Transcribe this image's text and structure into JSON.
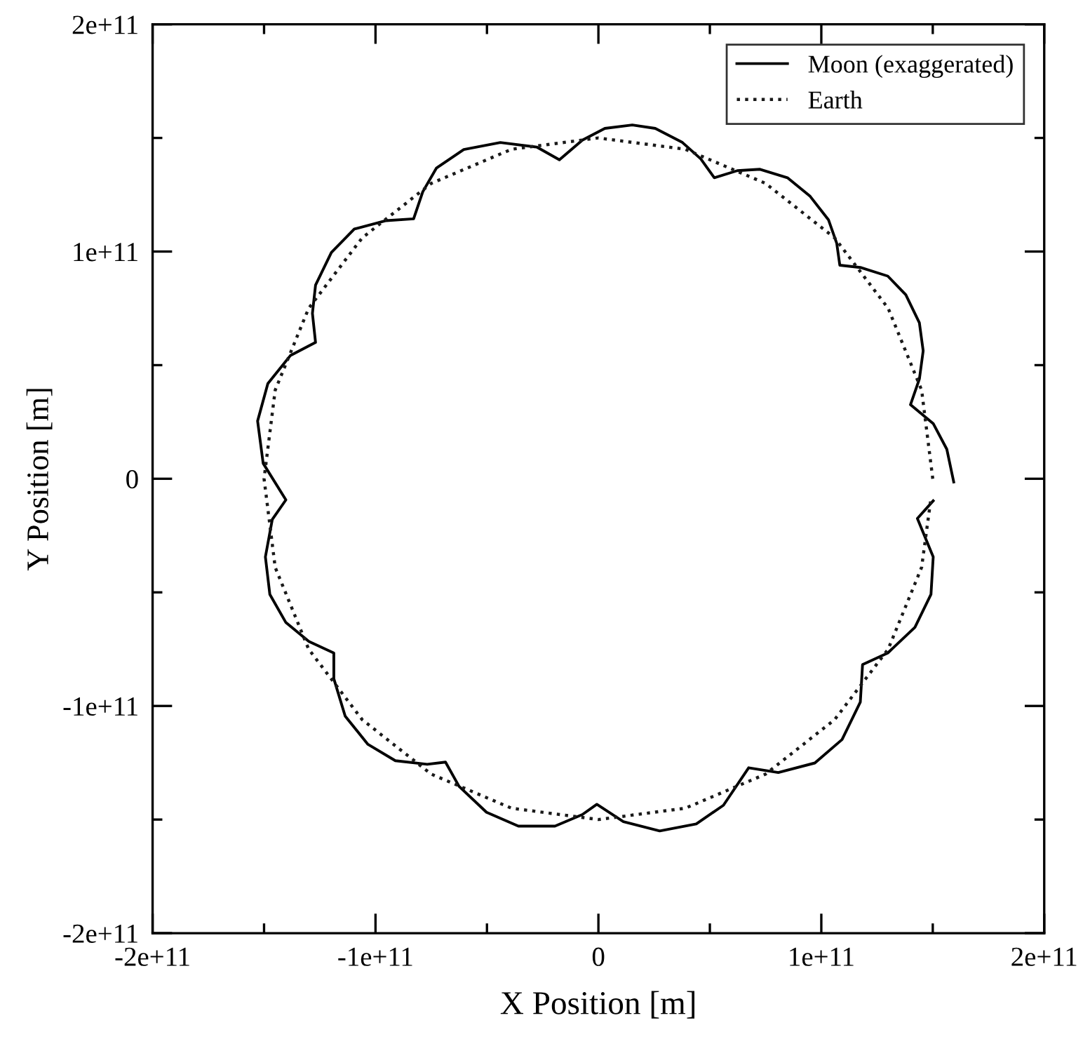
{
  "chart_data": {
    "type": "line",
    "xlabel": "X Position [m]",
    "ylabel": "Y Position [m]",
    "xlim": [
      -200000000000.0,
      200000000000.0
    ],
    "ylim": [
      -200000000000.0,
      200000000000.0
    ],
    "xticks": [
      {
        "value": -200000000000.0,
        "label": "-2e+11"
      },
      {
        "value": -150000000000.0,
        "label": null
      },
      {
        "value": -100000000000.0,
        "label": "-1e+11"
      },
      {
        "value": -50000000000.0,
        "label": null
      },
      0,
      {
        "value": 50000000000.0,
        "label": null
      },
      {
        "value": 100000000000.0,
        "label": "1e+11"
      },
      {
        "value": 150000000000.0,
        "label": null
      },
      {
        "value": 200000000000.0,
        "label": "2e+11"
      }
    ],
    "yticks": [
      {
        "value": -200000000000.0,
        "label": "-2e+11"
      },
      {
        "value": -150000000000.0,
        "label": null
      },
      {
        "value": -100000000000.0,
        "label": "-1e+11"
      },
      {
        "value": -50000000000.0,
        "label": null
      },
      0,
      {
        "value": 50000000000.0,
        "label": null
      },
      {
        "value": 100000000000.0,
        "label": "1e+11"
      },
      {
        "value": 150000000000.0,
        "label": null
      },
      {
        "value": 200000000000.0,
        "label": "2e+11"
      }
    ],
    "grid": false,
    "legend": "top right",
    "marker": "none",
    "series": [
      {
        "name": "Moon (exaggerated)",
        "color": "#000000",
        "line_style": "solid",
        "x": [
          159400000000.0,
          156300000000.0,
          150200000000.0,
          140000000000.0,
          144000000000.0,
          145700000000.0,
          144000000000.0,
          137900000000.0,
          129800000000.0,
          117500000000.0,
          108300000000.0,
          106900000000.0,
          103200000000.0,
          95000000000.0,
          84800000000.0,
          72500000000.0,
          62300000000.0,
          52000000000.0,
          45900000000.0,
          37700000000.0,
          25500000000.0,
          15200000000.0,
          2900000000.0,
          -7200000000.0,
          -17500000000.0,
          -27700000000.0,
          -44000000000.0,
          -60400000000.0,
          -72700000000.0,
          -78800000000.0,
          -82900000000.0,
          -95200000000.0,
          -109500000000.0,
          -119800000000.0,
          -126900000000.0,
          -128300000000.0,
          -126900000000.0,
          -138200000000.0,
          -148300000000.0,
          -152900000000.0,
          -150400000000.0,
          -140200000000.0,
          -146300000000.0,
          -149400000000.0,
          -147400000000.0,
          -140200000000.0,
          -129900000000.0,
          -118700000000.0,
          -118700000000.0,
          -113600000000.0,
          -103400000000.0,
          -91100000000.0,
          -76800000000.0,
          -68600000000.0,
          -62500000000.0,
          -50200000000.0,
          -35900000000.0,
          -19500000000.0,
          -7200000000.0,
          -700000000.0,
          11200000000.0,
          27500000000.0,
          43900000000.0,
          56100000000.0,
          67400000000.0,
          80700000000.0,
          97100000000.0,
          109300000000.0,
          117500000000.0,
          118500000000.0,
          129800000000.0,
          142000000000.0,
          149200000000.0,
          150200000000.0,
          143100000000.0,
          150200000000.0
        ],
        "values": [
          -1400000000.0,
          13000000000.0,
          24300000000.0,
          32600000000.0,
          43900000000.0,
          56300000000.0,
          68600000000.0,
          81000000000.0,
          89200000000.0,
          93000000000.0,
          94000000000.0,
          103700000000.0,
          114000000000.0,
          124300000000.0,
          132500000000.0,
          136200000000.0,
          135600000000.0,
          132500000000.0,
          140800000000.0,
          148000000000.0,
          154200000000.0,
          155700000000.0,
          154200000000.0,
          149000000000.0,
          140400000000.0,
          146000000000.0,
          148000000000.0,
          144900000000.0,
          136700000000.0,
          126300000000.0,
          114400000000.0,
          113600000000.0,
          109900000000.0,
          99600000000.0,
          85200000000.0,
          72800000000.0,
          60000000000.0,
          54200000000.0,
          41900000000.0,
          25400000000.0,
          6800000000.0,
          -9300000000.0,
          -17900000000.0,
          -34400000000.0,
          -50900000000.0,
          -63300000000.0,
          -71600000000.0,
          -76700000000.0,
          -88000000000.0,
          -104500000000.0,
          -116900000000.0,
          -124100000000.0,
          -125700000000.0,
          -124700000000.0,
          -135400000000.0,
          -146800000000.0,
          -152900000000.0,
          -152900000000.0,
          -147800000000.0,
          -143300000000.0,
          -150900000000.0,
          -155000000000.0,
          -151900000000.0,
          -143700000000.0,
          -127200000000.0,
          -129300000000.0,
          -125100000000.0,
          -114800000000.0,
          -98300000000.0,
          -81800000000.0,
          -76700000000.0,
          -65400000000.0,
          -50900000000.0,
          -34400000000.0,
          -17500000000.0,
          -9700000000.0
        ]
      },
      {
        "name": "Earth",
        "color": "#1a1a1a",
        "line_style": "dotted",
        "x": [
          150000000000.0,
          145000000000.0,
          130000000000.0,
          106000000000.0,
          75000000000.0,
          39000000000.0,
          0.0,
          -39000000000.0,
          -75000000000.0,
          -106000000000.0,
          -130000000000.0,
          -145000000000.0,
          -150000000000.0,
          -145000000000.0,
          -130000000000.0,
          -106000000000.0,
          -75000000000.0,
          -39000000000.0,
          0.0,
          39000000000.0,
          75000000000.0,
          106000000000.0,
          130000000000.0,
          145000000000.0,
          149000000000.0
        ],
        "values": [
          0.0,
          39000000000.0,
          75000000000.0,
          106000000000.0,
          130000000000.0,
          145000000000.0,
          150000000000.0,
          145000000000.0,
          130000000000.0,
          106000000000.0,
          75000000000.0,
          39000000000.0,
          0.0,
          -39000000000.0,
          -75000000000.0,
          -106000000000.0,
          -130000000000.0,
          -145000000000.0,
          -150000000000.0,
          -145000000000.0,
          -130000000000.0,
          -106000000000.0,
          -75000000000.0,
          -39000000000.0,
          -10000000000.0
        ]
      }
    ]
  }
}
